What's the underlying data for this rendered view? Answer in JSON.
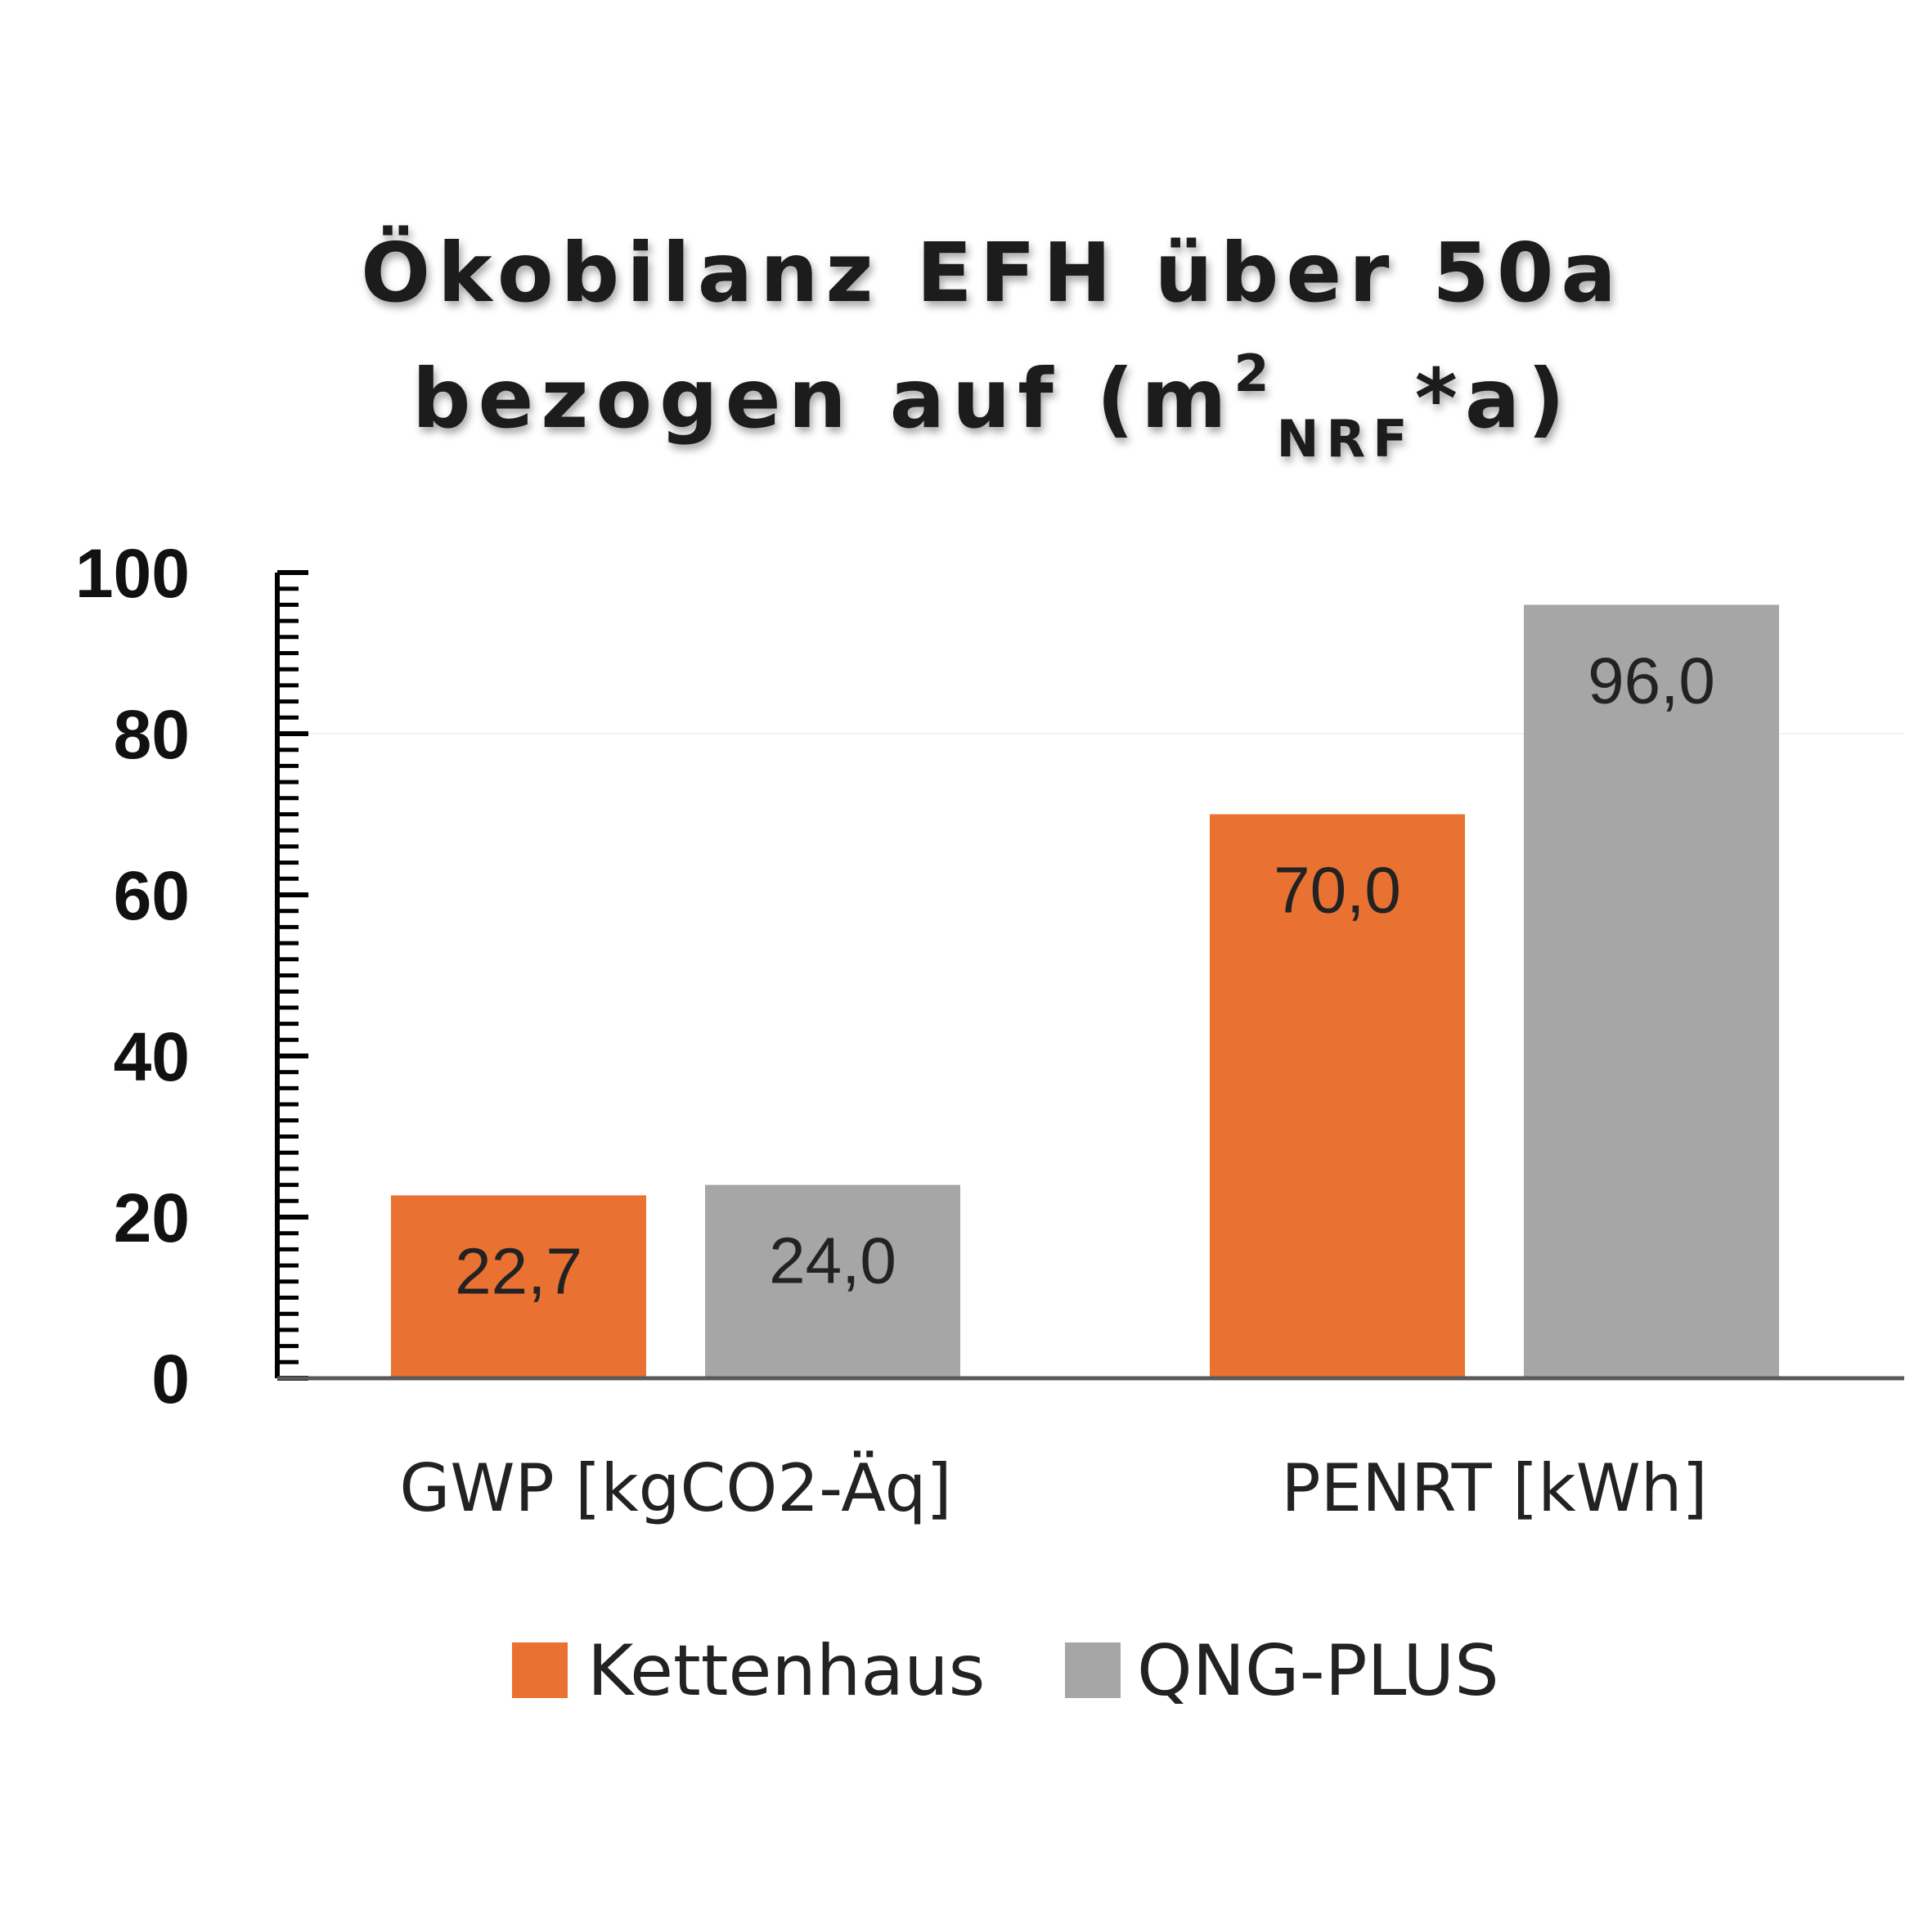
{
  "chart_data": {
    "type": "bar",
    "title": {
      "line1": "Ökobilanz EFH über 50a",
      "line2_main": "bezogen auf (m",
      "line2_sup": "2",
      "line2_sub": "NRF",
      "line2_end": "*a)"
    },
    "categories": [
      "GWP [kgCO2-Äq]",
      "PENRT [kWh]"
    ],
    "series": [
      {
        "name": "Kettenhaus",
        "color": "#E97132",
        "values": [
          22.7,
          70.0
        ],
        "labels": [
          "22,7",
          "70,0"
        ]
      },
      {
        "name": "QNG-PLUS",
        "color": "#A6A6A6",
        "values": [
          24.0,
          96.0
        ],
        "labels": [
          "24,0",
          "96,0"
        ]
      }
    ],
    "ylim": [
      0,
      100
    ],
    "yticks": [
      0,
      20,
      40,
      60,
      80,
      100
    ],
    "legend_position": "bottom",
    "grid": false
  }
}
